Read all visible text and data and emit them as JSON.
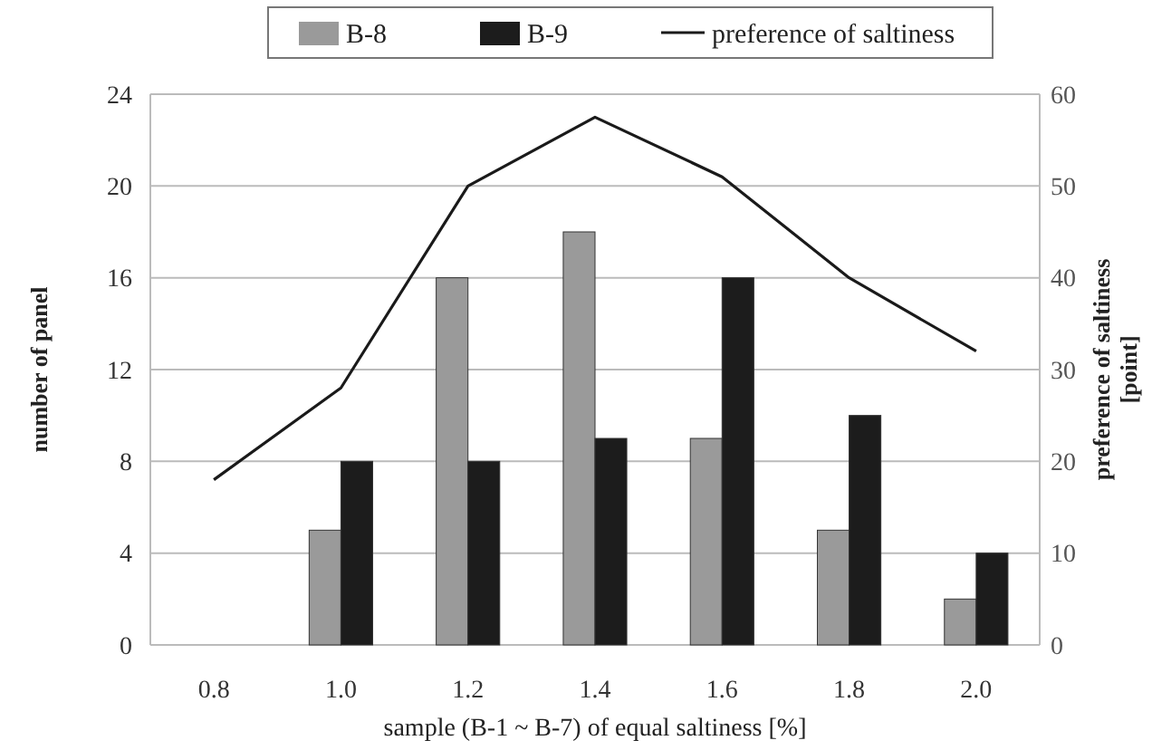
{
  "chart_data": {
    "type": "bar",
    "xlabel": "sample (B-1 ~ B-7) of equal  saltiness [%]",
    "ylabel": "number of panel",
    "y2label": "preference of saltiness\n[point]",
    "categories": [
      "0.8",
      "1.0",
      "1.2",
      "1.4",
      "1.6",
      "1.8",
      "2.0"
    ],
    "series": [
      {
        "name": "B-8",
        "color": "#9a9a9a",
        "values": [
          0,
          5,
          16,
          18,
          9,
          5,
          2
        ]
      },
      {
        "name": "B-9",
        "color": "#1c1c1c",
        "values": [
          0,
          8,
          8,
          9,
          16,
          10,
          4
        ]
      },
      {
        "name": "preference of saltiness",
        "type": "line",
        "axis": "y2",
        "color": "#1a1a1a",
        "values": [
          18,
          28,
          50,
          57.5,
          51,
          40,
          32
        ]
      }
    ],
    "ylim": [
      0,
      24
    ],
    "yticks": [
      0,
      4,
      8,
      12,
      16,
      20,
      24
    ],
    "y2lim": [
      0,
      60
    ],
    "y2ticks": [
      0,
      10,
      20,
      30,
      40,
      50,
      60
    ],
    "grid": "y",
    "legend": "top",
    "marker": "none"
  }
}
